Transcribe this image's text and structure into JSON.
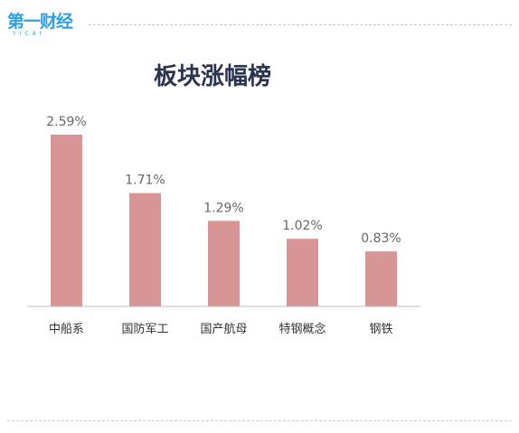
{
  "logo": {
    "main": "第一财经",
    "sub": "YICAI"
  },
  "colors": {
    "bar": "#d89595",
    "axis": "#bfbfbf",
    "title": "#2a3350",
    "logo": "#2f9fe2"
  },
  "chart_data": {
    "type": "bar",
    "title": "板块涨幅榜",
    "categories": [
      "中船系",
      "国防军工",
      "国产航母",
      "特钢概念",
      "钢铁"
    ],
    "values": [
      2.59,
      1.71,
      1.29,
      1.02,
      0.83
    ],
    "value_labels": [
      "2.59%",
      "1.71%",
      "1.29%",
      "1.02%",
      "0.83%"
    ],
    "ylim": [
      0,
      2.59
    ],
    "grid": false,
    "legend": "none"
  }
}
